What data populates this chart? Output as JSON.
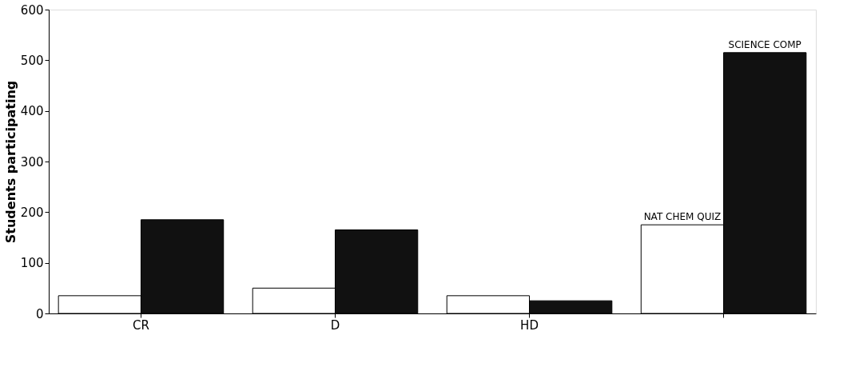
{
  "chart_data": {
    "type": "bar",
    "ylabel": "Students participating",
    "categories": [
      "CR",
      "D",
      "HD",
      null
    ],
    "series": [
      {
        "name": "NAT CHEM QUIZ",
        "color": "#ffffff",
        "values": [
          35,
          50,
          35,
          175
        ]
      },
      {
        "name": "SCIENCE COMP",
        "color": "#111111",
        "values": [
          185,
          165,
          25,
          515
        ]
      }
    ],
    "ylim": [
      0,
      600
    ],
    "yticks": [
      0,
      100,
      200,
      300,
      400,
      500,
      600
    ],
    "grid": false,
    "legend": false
  }
}
